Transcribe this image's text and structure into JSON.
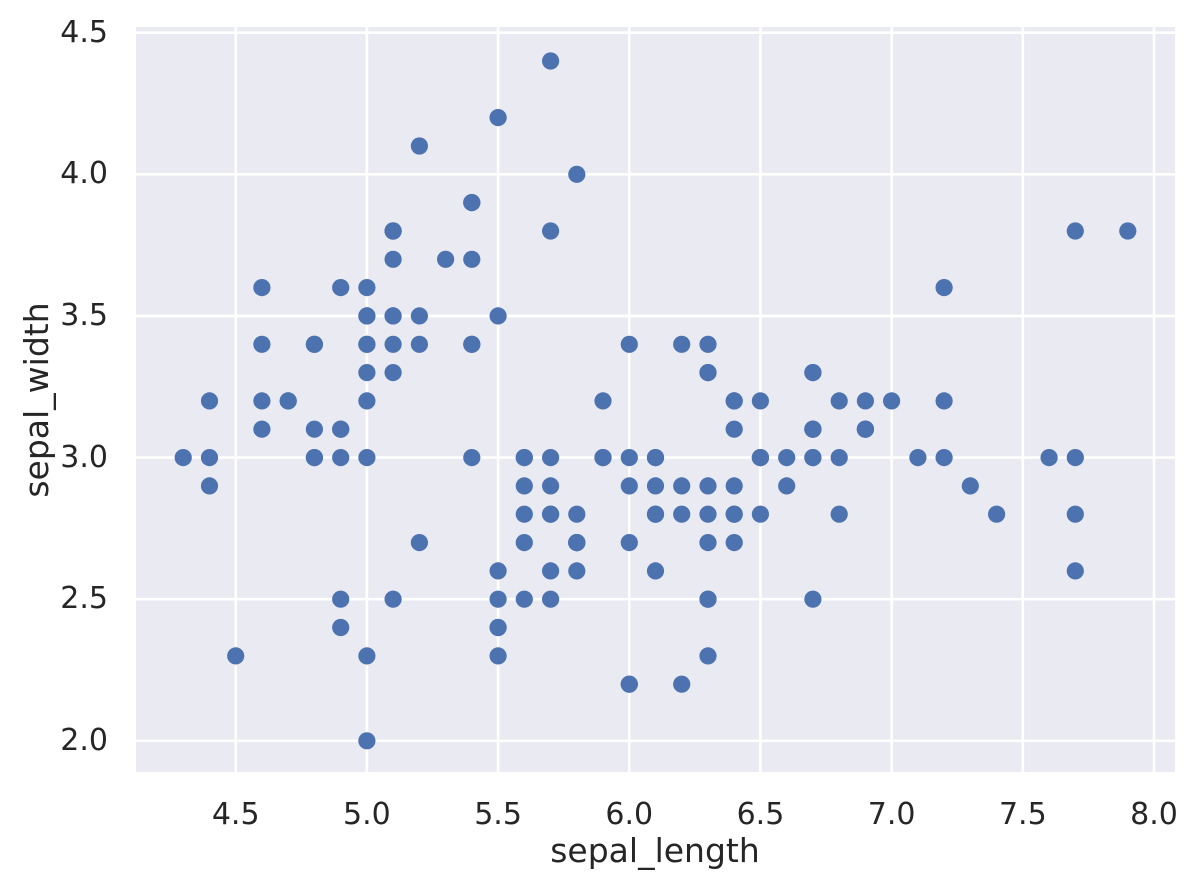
{
  "chart_data": {
    "type": "scatter",
    "title": "",
    "xlabel": "sepal_length",
    "ylabel": "sepal_width",
    "xlim": [
      4.12,
      8.08
    ],
    "ylim": [
      1.89,
      4.52
    ],
    "xticks": [
      "4.5",
      "5.0",
      "5.5",
      "6.0",
      "6.5",
      "7.0",
      "7.5",
      "8.0"
    ],
    "yticks": [
      "2.0",
      "2.5",
      "3.0",
      "3.5",
      "4.0",
      "4.5"
    ],
    "grid": true,
    "legend": "none",
    "style": {
      "plot_background": "#eaeaf2",
      "grid_color": "#ffffff",
      "marker_color": "#4c72b0",
      "text_color": "#262626",
      "figure_background": "#ffffff"
    },
    "points": [
      [
        5.1,
        3.5
      ],
      [
        4.9,
        3.0
      ],
      [
        4.7,
        3.2
      ],
      [
        4.6,
        3.1
      ],
      [
        5.0,
        3.6
      ],
      [
        5.4,
        3.9
      ],
      [
        4.6,
        3.4
      ],
      [
        5.0,
        3.4
      ],
      [
        4.4,
        2.9
      ],
      [
        4.9,
        3.1
      ],
      [
        5.4,
        3.7
      ],
      [
        4.8,
        3.4
      ],
      [
        4.8,
        3.0
      ],
      [
        4.3,
        3.0
      ],
      [
        5.8,
        4.0
      ],
      [
        5.7,
        4.4
      ],
      [
        5.4,
        3.9
      ],
      [
        5.1,
        3.5
      ],
      [
        5.7,
        3.8
      ],
      [
        5.1,
        3.8
      ],
      [
        5.4,
        3.4
      ],
      [
        5.1,
        3.7
      ],
      [
        4.6,
        3.6
      ],
      [
        5.1,
        3.3
      ],
      [
        4.8,
        3.4
      ],
      [
        5.0,
        3.0
      ],
      [
        5.0,
        3.4
      ],
      [
        5.2,
        3.5
      ],
      [
        5.2,
        3.4
      ],
      [
        4.7,
        3.2
      ],
      [
        4.8,
        3.1
      ],
      [
        5.4,
        3.4
      ],
      [
        5.2,
        4.1
      ],
      [
        5.5,
        4.2
      ],
      [
        4.9,
        3.1
      ],
      [
        5.0,
        3.2
      ],
      [
        5.5,
        3.5
      ],
      [
        4.9,
        3.6
      ],
      [
        4.4,
        3.0
      ],
      [
        5.1,
        3.4
      ],
      [
        5.0,
        3.5
      ],
      [
        4.5,
        2.3
      ],
      [
        4.4,
        3.2
      ],
      [
        5.0,
        3.5
      ],
      [
        5.1,
        3.8
      ],
      [
        4.8,
        3.0
      ],
      [
        5.1,
        3.8
      ],
      [
        4.6,
        3.2
      ],
      [
        5.3,
        3.7
      ],
      [
        5.0,
        3.3
      ],
      [
        7.0,
        3.2
      ],
      [
        6.4,
        3.2
      ],
      [
        6.9,
        3.1
      ],
      [
        5.5,
        2.3
      ],
      [
        6.5,
        2.8
      ],
      [
        5.7,
        2.8
      ],
      [
        6.3,
        3.3
      ],
      [
        4.9,
        2.4
      ],
      [
        6.6,
        2.9
      ],
      [
        5.2,
        2.7
      ],
      [
        5.0,
        2.0
      ],
      [
        5.9,
        3.0
      ],
      [
        6.0,
        2.2
      ],
      [
        6.1,
        2.9
      ],
      [
        5.6,
        2.9
      ],
      [
        6.7,
        3.1
      ],
      [
        5.6,
        3.0
      ],
      [
        5.8,
        2.7
      ],
      [
        6.2,
        2.2
      ],
      [
        5.6,
        2.5
      ],
      [
        5.9,
        3.2
      ],
      [
        6.1,
        2.8
      ],
      [
        6.3,
        2.5
      ],
      [
        6.1,
        2.8
      ],
      [
        6.4,
        2.9
      ],
      [
        6.6,
        3.0
      ],
      [
        6.8,
        2.8
      ],
      [
        6.7,
        3.0
      ],
      [
        6.0,
        2.9
      ],
      [
        5.7,
        2.6
      ],
      [
        5.5,
        2.4
      ],
      [
        5.5,
        2.4
      ],
      [
        5.8,
        2.7
      ],
      [
        6.0,
        2.7
      ],
      [
        5.4,
        3.0
      ],
      [
        6.0,
        3.4
      ],
      [
        6.7,
        3.1
      ],
      [
        6.3,
        2.3
      ],
      [
        5.6,
        3.0
      ],
      [
        5.5,
        2.5
      ],
      [
        5.5,
        2.6
      ],
      [
        6.1,
        3.0
      ],
      [
        5.8,
        2.6
      ],
      [
        5.0,
        2.3
      ],
      [
        5.6,
        2.7
      ],
      [
        5.7,
        3.0
      ],
      [
        5.7,
        2.9
      ],
      [
        6.2,
        2.9
      ],
      [
        5.1,
        2.5
      ],
      [
        5.7,
        2.8
      ],
      [
        6.3,
        3.3
      ],
      [
        5.8,
        2.7
      ],
      [
        7.1,
        3.0
      ],
      [
        6.3,
        2.9
      ],
      [
        6.5,
        3.0
      ],
      [
        7.6,
        3.0
      ],
      [
        4.9,
        2.5
      ],
      [
        7.3,
        2.9
      ],
      [
        6.7,
        2.5
      ],
      [
        7.2,
        3.6
      ],
      [
        6.5,
        3.2
      ],
      [
        6.4,
        2.7
      ],
      [
        6.8,
        3.0
      ],
      [
        5.7,
        2.5
      ],
      [
        5.8,
        2.8
      ],
      [
        6.4,
        3.2
      ],
      [
        6.5,
        3.0
      ],
      [
        7.7,
        3.8
      ],
      [
        7.7,
        2.6
      ],
      [
        6.0,
        2.2
      ],
      [
        6.9,
        3.2
      ],
      [
        5.6,
        2.8
      ],
      [
        7.7,
        2.8
      ],
      [
        6.3,
        2.7
      ],
      [
        6.7,
        3.3
      ],
      [
        7.2,
        3.2
      ],
      [
        6.2,
        2.8
      ],
      [
        6.1,
        3.0
      ],
      [
        6.4,
        2.8
      ],
      [
        7.2,
        3.0
      ],
      [
        7.4,
        2.8
      ],
      [
        7.9,
        3.8
      ],
      [
        6.4,
        2.8
      ],
      [
        6.3,
        2.8
      ],
      [
        6.1,
        2.6
      ],
      [
        7.7,
        3.0
      ],
      [
        6.3,
        3.4
      ],
      [
        6.4,
        3.1
      ],
      [
        6.0,
        3.0
      ],
      [
        6.9,
        3.1
      ],
      [
        6.7,
        3.1
      ],
      [
        6.9,
        3.1
      ],
      [
        5.8,
        2.7
      ],
      [
        6.8,
        3.2
      ],
      [
        6.7,
        3.3
      ],
      [
        6.7,
        3.0
      ],
      [
        6.3,
        2.5
      ],
      [
        6.5,
        3.0
      ],
      [
        6.2,
        3.4
      ],
      [
        5.9,
        3.0
      ]
    ]
  }
}
